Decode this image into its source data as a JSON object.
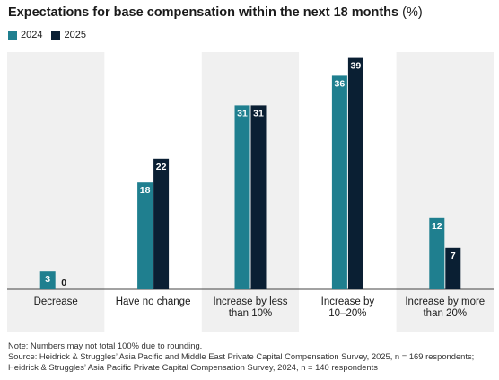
{
  "title": {
    "main": "Expectations for base compensation within the next 18 months",
    "unit": "(%)"
  },
  "legend": [
    {
      "label": "2024",
      "color": "#1f7f8f"
    },
    {
      "label": "2025",
      "color": "#0a1f33"
    }
  ],
  "chart_data": {
    "type": "bar",
    "categories": [
      [
        "Decrease"
      ],
      [
        "Have no change"
      ],
      [
        "Increase by less",
        "than 10%"
      ],
      [
        "Increase by",
        "10–20%"
      ],
      [
        "Increase by more",
        "than 20%"
      ]
    ],
    "series": [
      {
        "name": "2024",
        "color": "#1f7f8f",
        "values": [
          3,
          18,
          31,
          36,
          12
        ]
      },
      {
        "name": "2025",
        "color": "#0a1f33",
        "values": [
          0,
          22,
          31,
          39,
          7
        ]
      }
    ],
    "ylim": [
      0,
      40
    ],
    "band_colors": [
      "#f0f0f0",
      "#ffffff"
    ],
    "grid": false,
    "legend_position": "top-left"
  },
  "notes": {
    "note": "Note: Numbers may not total 100% due to rounding.",
    "source": "Source: Heidrick & Struggles’ Asia Pacific and Middle East Private Capital Compensation Survey, 2025, n = 169 respondents; Heidrick & Struggles’ Asia Pacific Private Capital Compensation Survey, 2024, n = 140 respondents"
  }
}
